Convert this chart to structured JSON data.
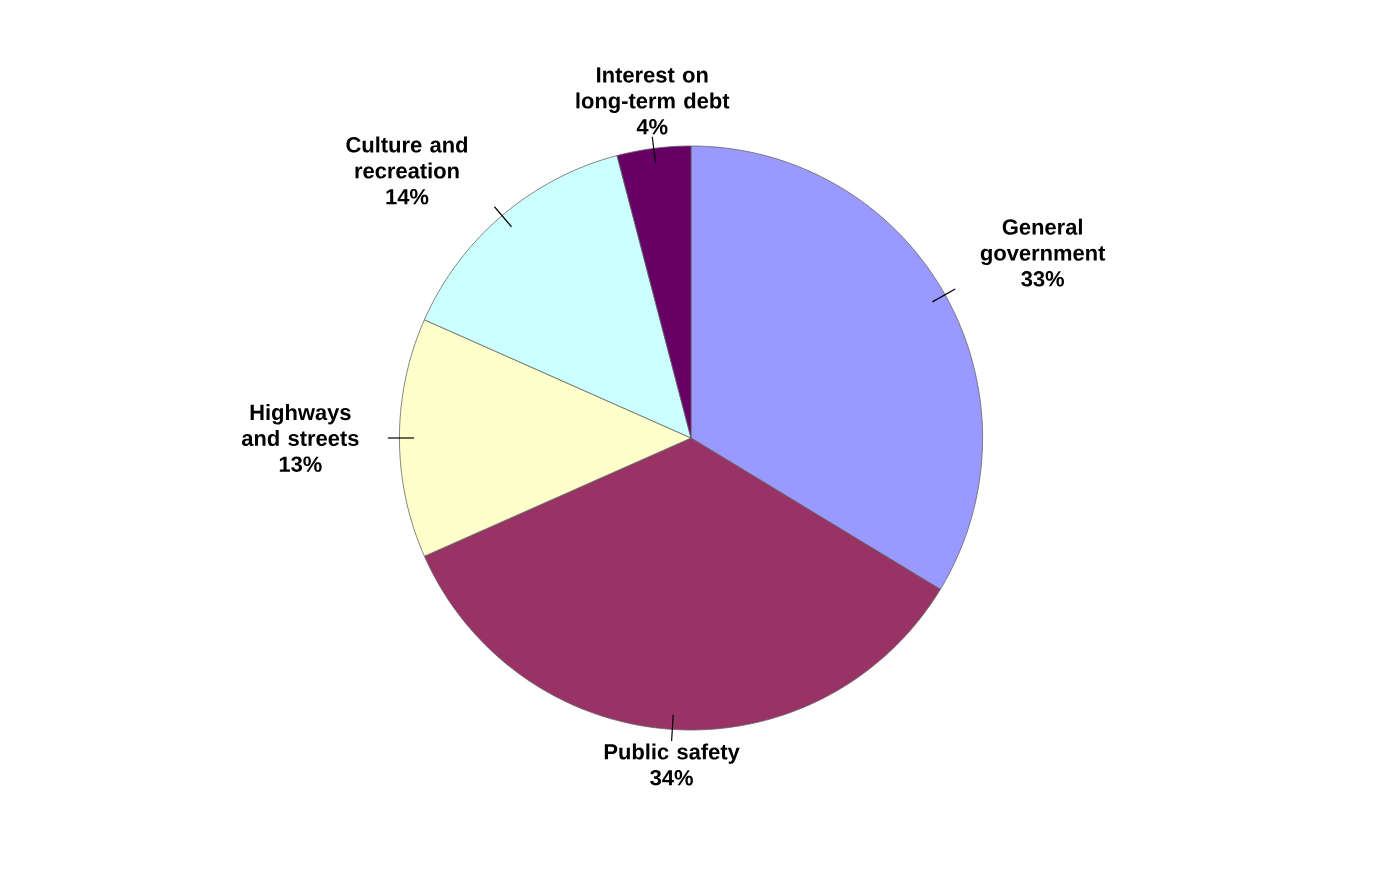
{
  "chart_data": {
    "type": "pie",
    "categories": [
      "General government",
      "Public safety",
      "Highways and streets",
      "Culture and recreation",
      "Interest on long-term debt"
    ],
    "values": [
      33,
      34,
      13,
      14,
      4
    ],
    "value_labels": [
      "33%",
      "34%",
      "13%",
      "14%",
      "4%"
    ],
    "colors": [
      "#9999ff",
      "#993366",
      "#ffffcc",
      "#ccffff",
      "#660066"
    ]
  }
}
